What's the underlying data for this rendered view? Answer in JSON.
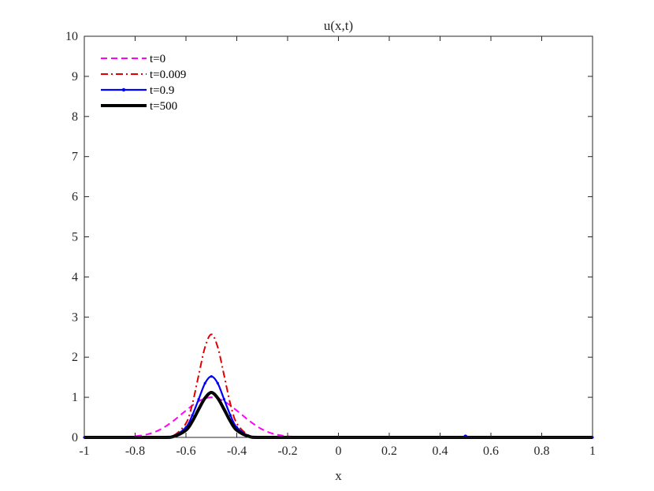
{
  "chart_data": {
    "type": "line",
    "title": "u(x,t)",
    "xlabel": "x",
    "ylabel": "",
    "xlim": [
      -1,
      1
    ],
    "ylim": [
      0,
      10
    ],
    "x_ticks": [
      -1,
      -0.8,
      -0.6,
      -0.4,
      -0.2,
      0,
      0.2,
      0.4,
      0.6,
      0.8,
      1
    ],
    "x_tick_labels": [
      "-1",
      "-0.8",
      "-0.6",
      "-0.4",
      "-0.2",
      "0",
      "0.2",
      "0.4",
      "0.6",
      "0.8",
      "1"
    ],
    "y_ticks": [
      0,
      1,
      2,
      3,
      4,
      5,
      6,
      7,
      8,
      9,
      10
    ],
    "y_tick_labels": [
      "0",
      "1",
      "2",
      "3",
      "4",
      "5",
      "6",
      "7",
      "8",
      "9",
      "10"
    ],
    "grid": false,
    "legend_position": "top-left",
    "series": [
      {
        "name": "t=0",
        "color": "#ff00ff",
        "style": "dashed",
        "x": [
          -1,
          -0.9,
          -0.85,
          -0.8,
          -0.75,
          -0.7,
          -0.65,
          -0.6,
          -0.55,
          -0.5,
          -0.45,
          -0.4,
          -0.35,
          -0.3,
          -0.25,
          -0.2,
          -0.15,
          -0.1,
          0,
          0.5,
          1
        ],
        "y": [
          0,
          0,
          0.01,
          0.03,
          0.08,
          0.2,
          0.41,
          0.67,
          0.9,
          1.0,
          0.9,
          0.67,
          0.41,
          0.2,
          0.08,
          0.03,
          0.01,
          0,
          0,
          0,
          0
        ]
      },
      {
        "name": "t=0.009",
        "color": "#e00000",
        "style": "dashdot",
        "x": [
          -1,
          -0.7,
          -0.65,
          -0.6,
          -0.575,
          -0.55,
          -0.525,
          -0.5,
          -0.475,
          -0.45,
          -0.425,
          -0.4,
          -0.35,
          -0.3,
          0,
          0.45,
          0.5,
          0.55,
          1
        ],
        "y": [
          0,
          0,
          0.04,
          0.35,
          0.83,
          1.55,
          2.25,
          2.57,
          2.25,
          1.55,
          0.83,
          0.35,
          0.04,
          0,
          0,
          0,
          0.03,
          0,
          0
        ]
      },
      {
        "name": "t=0.9",
        "color": "#0000ff",
        "style": "solid-dot",
        "x": [
          -1,
          -0.7,
          -0.65,
          -0.6,
          -0.575,
          -0.55,
          -0.525,
          -0.5,
          -0.475,
          -0.45,
          -0.425,
          -0.4,
          -0.35,
          -0.3,
          0,
          0.45,
          0.5,
          0.55,
          1
        ],
        "y": [
          0,
          0,
          0.03,
          0.25,
          0.55,
          0.95,
          1.35,
          1.52,
          1.35,
          0.95,
          0.55,
          0.25,
          0.03,
          0,
          0,
          0,
          0.04,
          0,
          0
        ]
      },
      {
        "name": "t=500",
        "color": "#000000",
        "style": "solid-thick",
        "x": [
          -1,
          -0.7,
          -0.65,
          -0.6,
          -0.575,
          -0.55,
          -0.525,
          -0.5,
          -0.475,
          -0.45,
          -0.425,
          -0.4,
          -0.35,
          -0.3,
          0,
          1
        ],
        "y": [
          0,
          0,
          0.02,
          0.18,
          0.4,
          0.7,
          0.98,
          1.12,
          0.98,
          0.7,
          0.4,
          0.18,
          0.02,
          0,
          0,
          0
        ]
      }
    ]
  }
}
